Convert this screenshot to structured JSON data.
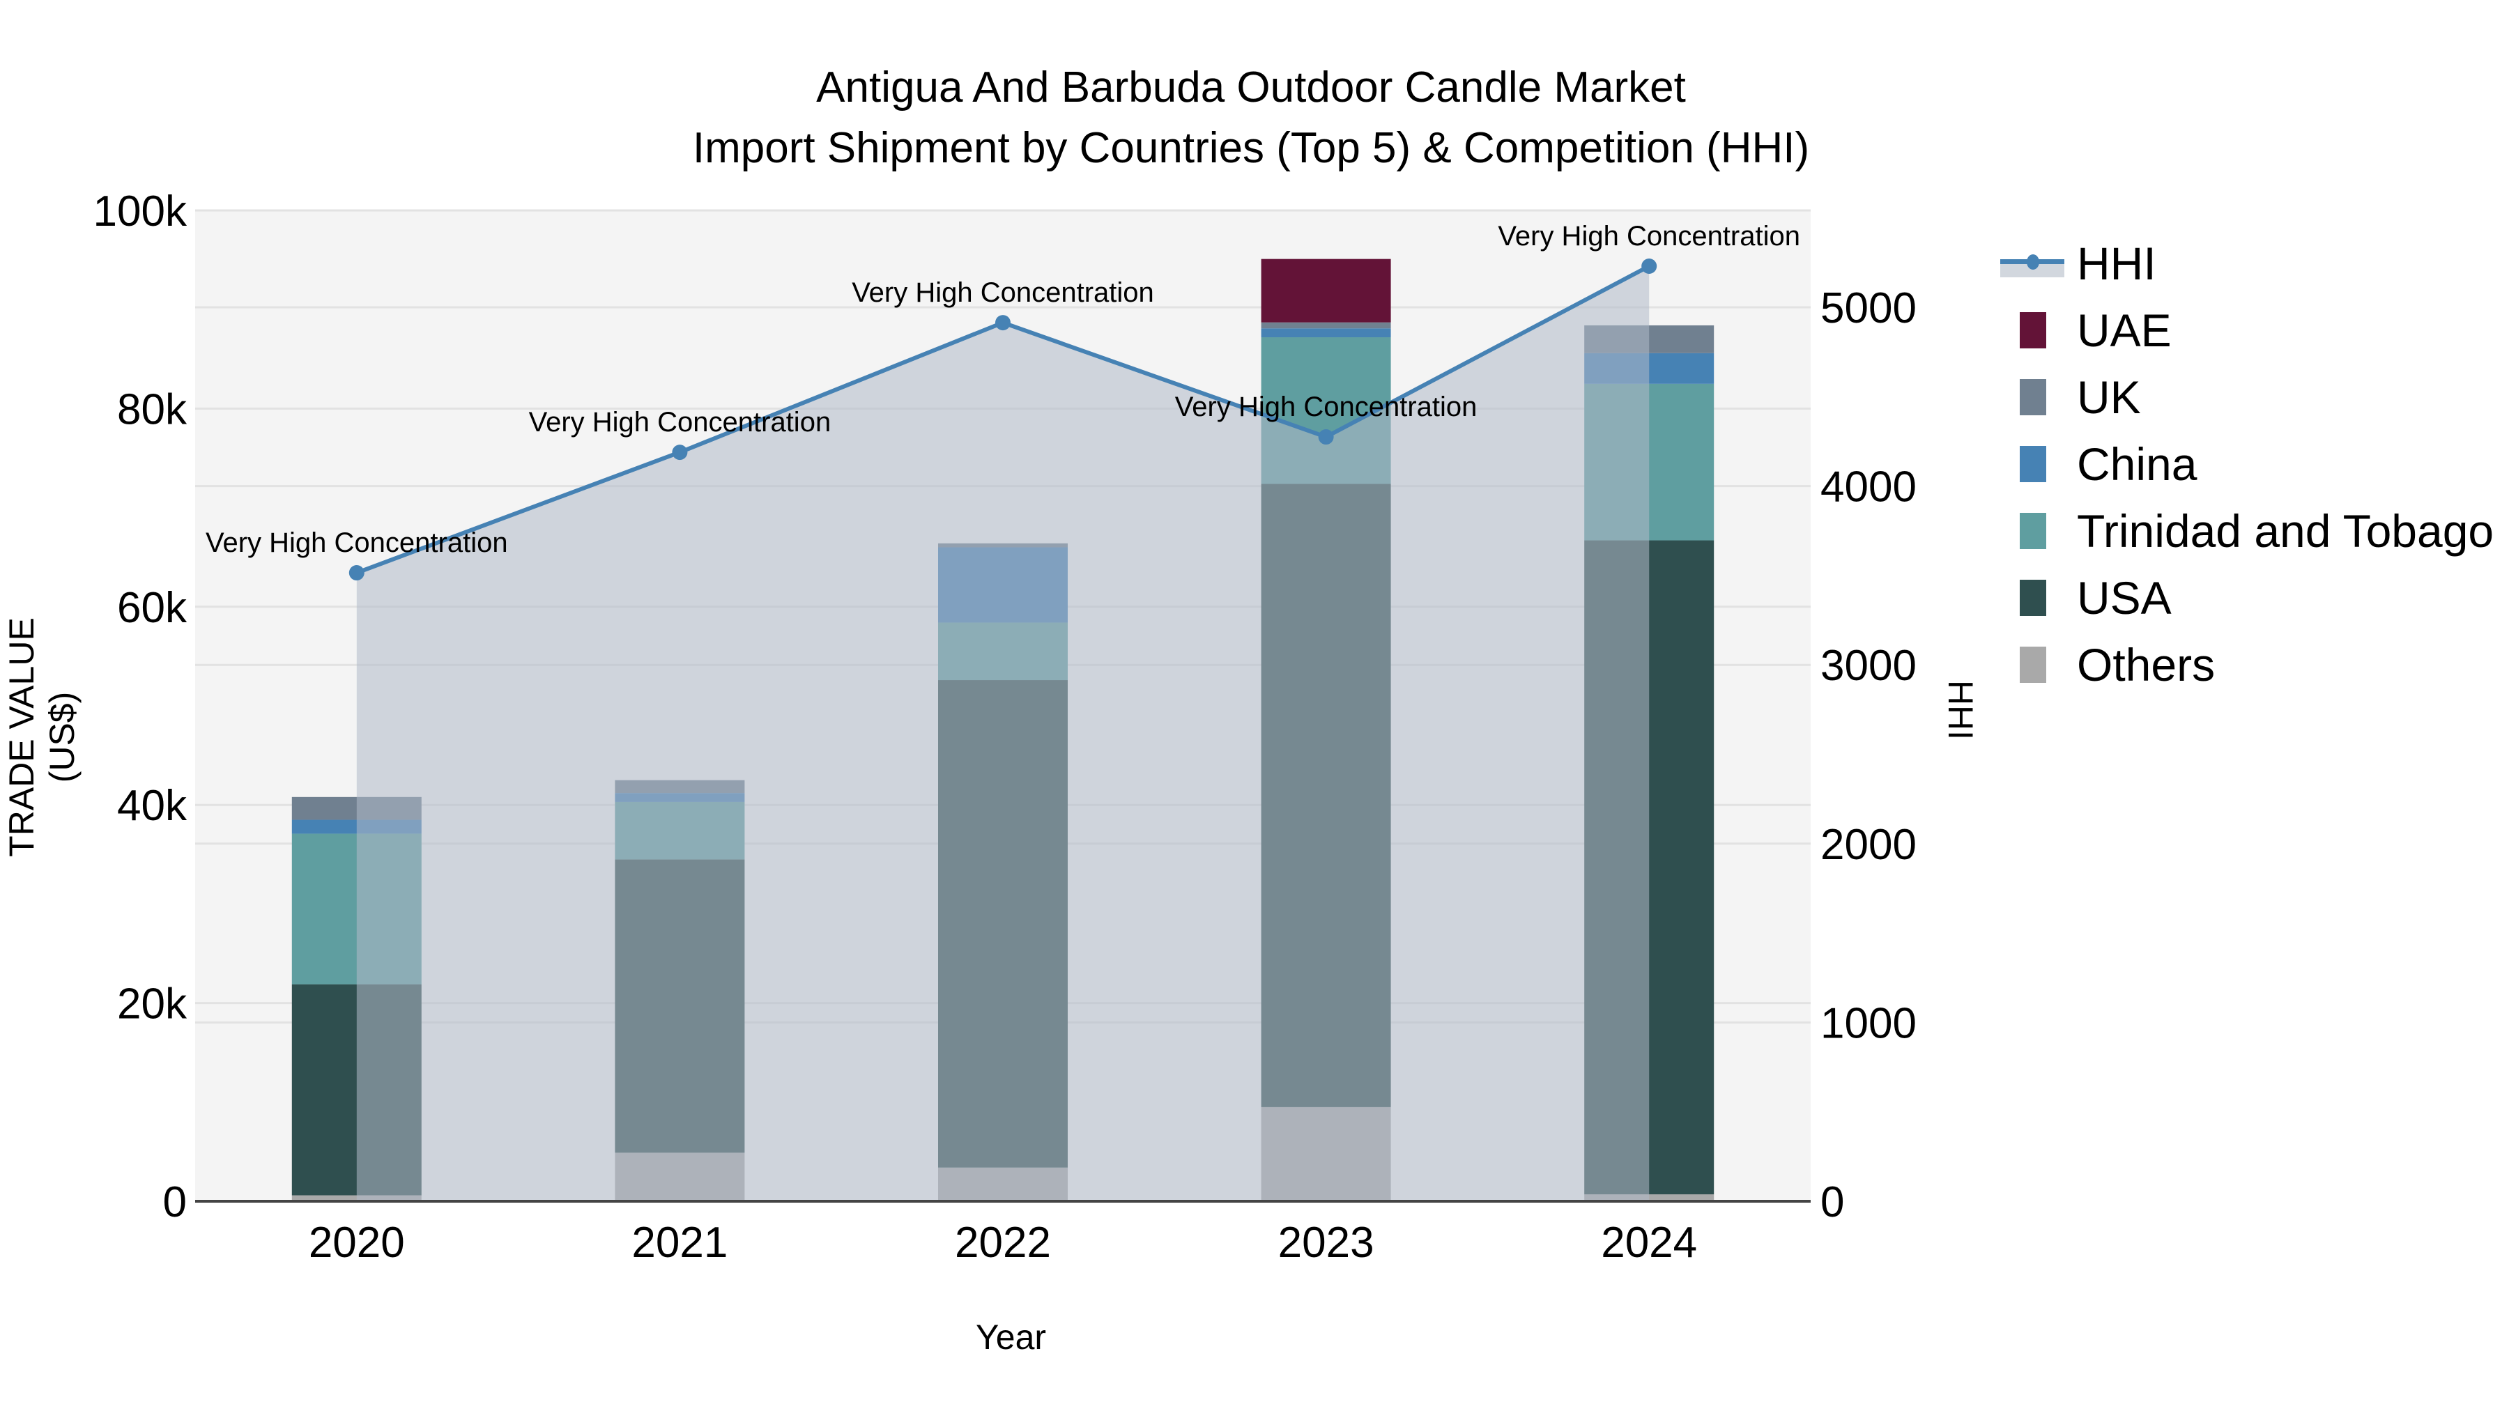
{
  "title": {
    "line1": "Antigua And Barbuda Outdoor Candle Market",
    "line2": "Import Shipment by Countries (Top 5) & Competition (HHI)"
  },
  "axes": {
    "x_title": "Year",
    "y_left_title": "TRADE VALUE (US$)",
    "y_right_title": "HHI",
    "y_left_ticks": [
      "0",
      "20k",
      "40k",
      "60k",
      "80k",
      "100k"
    ],
    "y_right_ticks": [
      "0",
      "1000",
      "2000",
      "3000",
      "4000",
      "5000"
    ],
    "x_ticks": [
      "2020",
      "2021",
      "2022",
      "2023",
      "2024"
    ]
  },
  "legend": [
    {
      "name": "HHI",
      "color": "#4682b4",
      "type": "line"
    },
    {
      "name": "UAE",
      "color": "#631337",
      "type": "bar"
    },
    {
      "name": "UK",
      "color": "#708090",
      "type": "bar"
    },
    {
      "name": "China",
      "color": "#4682b4",
      "type": "bar"
    },
    {
      "name": "Trinidad and Tobago",
      "color": "#5f9ea0",
      "type": "bar"
    },
    {
      "name": "USA",
      "color": "#2f4f4f",
      "type": "bar"
    },
    {
      "name": "Others",
      "color": "#a9a9a9",
      "type": "bar"
    }
  ],
  "annotation_label": "Very High Concentration",
  "chart_data": {
    "type": "bar",
    "title": "Antigua And Barbuda Outdoor Candle Market - Import Shipment by Countries (Top 5) & Competition (HHI)",
    "xlabel": "Year",
    "ylabel": "TRADE VALUE (US$)",
    "y2label": "HHI",
    "ylim": [
      0,
      100000
    ],
    "y2lim": [
      0,
      5550
    ],
    "barmode": "stack",
    "categories": [
      "2020",
      "2021",
      "2022",
      "2023",
      "2024"
    ],
    "series": [
      {
        "name": "Others",
        "color": "#a9a9a9",
        "values": [
          600,
          4900,
          3400,
          9500,
          700
        ]
      },
      {
        "name": "USA",
        "color": "#2f4f4f",
        "values": [
          21300,
          29600,
          49200,
          62900,
          66000
        ]
      },
      {
        "name": "Trinidad and Tobago",
        "color": "#5f9ea0",
        "values": [
          15200,
          5800,
          5800,
          14800,
          15800
        ]
      },
      {
        "name": "China",
        "color": "#4682b4",
        "values": [
          1400,
          900,
          7600,
          900,
          3100
        ]
      },
      {
        "name": "UK",
        "color": "#708090",
        "values": [
          2300,
          1300,
          400,
          600,
          2800
        ]
      },
      {
        "name": "UAE",
        "color": "#631337",
        "values": [
          0,
          0,
          0,
          6400,
          0
        ]
      }
    ],
    "line_series": {
      "name": "HHI",
      "axis": "right",
      "color": "#4682b4",
      "values": [
        3515,
        4189,
        4914,
        4275,
        5230
      ],
      "labels": [
        "Very High Concentration",
        "Very High Concentration",
        "Very High Concentration",
        "Very High Concentration",
        "Very High Concentration"
      ]
    },
    "grid": true,
    "legend_position": "right"
  }
}
